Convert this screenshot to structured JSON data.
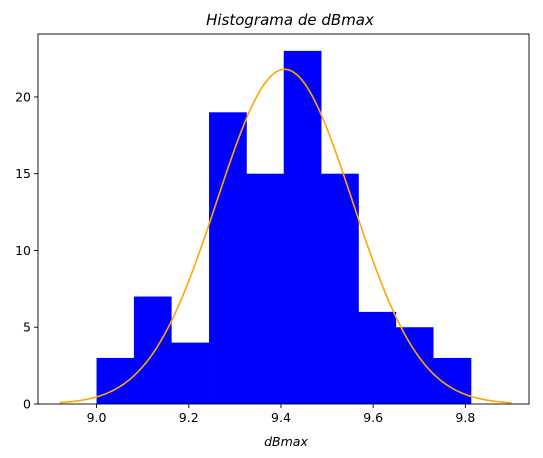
{
  "chart_data": {
    "type": "histogram",
    "title": "Histograma de dBmax",
    "xlabel": "dBmax",
    "ylabel": "",
    "xlim": [
      8.873,
      9.938
    ],
    "ylim": [
      0,
      24.1
    ],
    "xticks": [
      "9.0",
      "9.2",
      "9.4",
      "9.6",
      "9.8"
    ],
    "yticks": [
      "0",
      "5",
      "10",
      "15",
      "20"
    ],
    "bins": [
      {
        "start": 9.0,
        "end": 9.081,
        "count": 3
      },
      {
        "start": 9.081,
        "end": 9.162,
        "count": 7
      },
      {
        "start": 9.162,
        "end": 9.244,
        "count": 4
      },
      {
        "start": 9.244,
        "end": 9.325,
        "count": 19
      },
      {
        "start": 9.325,
        "end": 9.406,
        "count": 15
      },
      {
        "start": 9.406,
        "end": 9.487,
        "count": 23
      },
      {
        "start": 9.487,
        "end": 9.568,
        "count": 15
      },
      {
        "start": 9.568,
        "end": 9.649,
        "count": 6
      },
      {
        "start": 9.649,
        "end": 9.73,
        "count": 5
      },
      {
        "start": 9.73,
        "end": 9.812,
        "count": 3
      }
    ],
    "fit_curve": {
      "type": "normal",
      "mean": 9.408,
      "peak": 21.8,
      "sigma": 0.147,
      "x_range": [
        8.92,
        9.9
      ]
    },
    "bar_color": "#0000ff",
    "curve_color": "#ffa500",
    "grid": false,
    "legend": "none"
  }
}
